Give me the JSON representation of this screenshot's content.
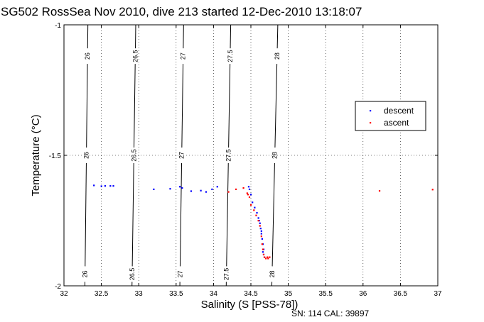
{
  "chart_data": {
    "type": "scatter",
    "title": "SG502 RossSea Nov 2010, dive 213 started 12-Dec-2010 13:18:07",
    "xlabel": "Salinity (S [PSS-78])",
    "ylabel": "Temperature (°C)",
    "xlim": [
      32,
      37
    ],
    "ylim": [
      -2,
      -1
    ],
    "xticks": [
      "32",
      "32.5",
      "33",
      "33.5",
      "34",
      "34.5",
      "35",
      "35.5",
      "36",
      "36.5",
      "37"
    ],
    "yticks": [
      "-2",
      "-1.5",
      "-1"
    ],
    "grid": "dotted",
    "legend_position": "top-right",
    "series": [
      {
        "name": "descent",
        "color": "#0000ff",
        "points": [
          [
            32.4,
            -1.615
          ],
          [
            32.5,
            -1.618
          ],
          [
            32.55,
            -1.617
          ],
          [
            32.62,
            -1.617
          ],
          [
            32.66,
            -1.617
          ],
          [
            33.2,
            -1.63
          ],
          [
            33.42,
            -1.628
          ],
          [
            33.55,
            -1.62
          ],
          [
            33.58,
            -1.625
          ],
          [
            33.7,
            -1.637
          ],
          [
            33.83,
            -1.635
          ],
          [
            33.9,
            -1.64
          ],
          [
            33.98,
            -1.63
          ],
          [
            34.05,
            -1.62
          ],
          [
            34.47,
            -1.62
          ],
          [
            34.48,
            -1.63
          ],
          [
            34.5,
            -1.65
          ],
          [
            34.52,
            -1.68
          ],
          [
            34.55,
            -1.7
          ],
          [
            34.58,
            -1.72
          ],
          [
            34.6,
            -1.74
          ],
          [
            34.62,
            -1.76
          ],
          [
            34.63,
            -1.78
          ],
          [
            34.64,
            -1.8
          ],
          [
            34.65,
            -1.82
          ],
          [
            34.66,
            -1.84
          ],
          [
            34.67,
            -1.86
          ],
          [
            34.67,
            -1.88
          ],
          [
            34.68,
            -1.89
          ],
          [
            34.66,
            -1.87
          ],
          [
            34.64,
            -1.79
          ],
          [
            34.61,
            -1.75
          ]
        ]
      },
      {
        "name": "ascent",
        "color": "#ff0000",
        "points": [
          [
            34.4,
            -1.625
          ],
          [
            34.45,
            -1.645
          ],
          [
            34.46,
            -1.65
          ],
          [
            34.48,
            -1.66
          ],
          [
            34.5,
            -1.69
          ],
          [
            34.54,
            -1.71
          ],
          [
            34.57,
            -1.73
          ],
          [
            34.6,
            -1.75
          ],
          [
            34.62,
            -1.77
          ],
          [
            34.64,
            -1.81
          ],
          [
            34.65,
            -1.84
          ],
          [
            34.66,
            -1.86
          ],
          [
            34.67,
            -1.88
          ],
          [
            34.68,
            -1.89
          ],
          [
            34.7,
            -1.895
          ],
          [
            34.72,
            -1.89
          ],
          [
            34.73,
            -1.895
          ],
          [
            34.75,
            -1.89
          ],
          [
            34.3,
            -1.63
          ],
          [
            34.2,
            -1.64
          ],
          [
            36.22,
            -1.636
          ],
          [
            36.93,
            -1.631
          ]
        ]
      }
    ],
    "density_contours": [
      {
        "label": "26",
        "top": 32.32,
        "bottom": 32.28
      },
      {
        "label": "26.5",
        "top": 32.96,
        "bottom": 32.91
      },
      {
        "label": "27",
        "top": 33.6,
        "bottom": 33.55
      },
      {
        "label": "27.5",
        "top": 34.23,
        "bottom": 34.17
      },
      {
        "label": "28",
        "top": 34.86,
        "bottom": 34.78
      }
    ],
    "annotation": "SN: 114  CAL: 39897"
  }
}
